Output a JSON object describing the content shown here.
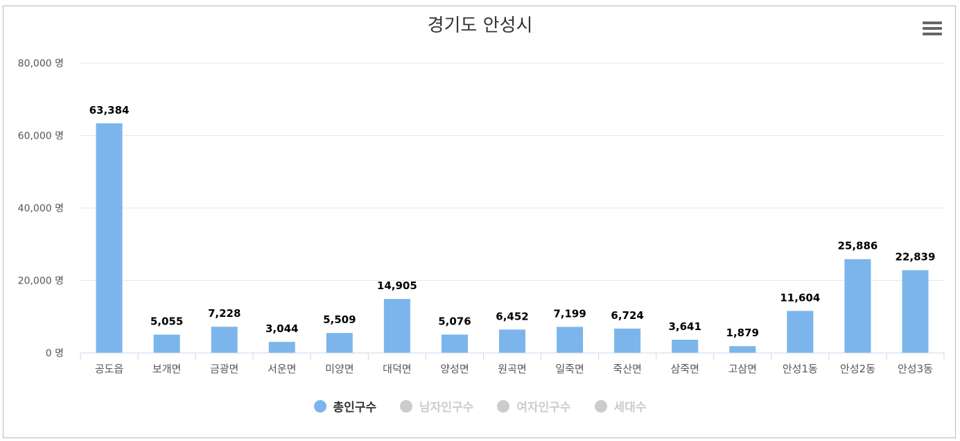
{
  "chart_data": {
    "type": "bar",
    "title": "경기도 안성시",
    "categories": [
      "공도읍",
      "보개면",
      "금광면",
      "서운면",
      "미양면",
      "대덕면",
      "양성면",
      "원곡면",
      "일죽면",
      "죽산면",
      "삼죽면",
      "고삼면",
      "안성1동",
      "안성2동",
      "안성3동"
    ],
    "series": [
      {
        "name": "총인구수",
        "values": [
          63384,
          5055,
          7228,
          3044,
          5509,
          14905,
          5076,
          6452,
          7199,
          6724,
          3641,
          1879,
          11604,
          25886,
          22839
        ]
      }
    ],
    "data_labels": [
      "63,384",
      "5,055",
      "7,228",
      "3,044",
      "5,509",
      "14,905",
      "5,076",
      "6,452",
      "7,199",
      "6,724",
      "3,641",
      "1,879",
      "11,604",
      "25,886",
      "22,839"
    ],
    "y_ticks": [
      0,
      20000,
      40000,
      60000,
      80000
    ],
    "y_tick_labels": [
      "0 명",
      "20,000 명",
      "40,000 명",
      "60,000 명",
      "80,000 명"
    ],
    "ylim": [
      0,
      80000
    ],
    "grid": true,
    "legend_position": "bottom-center",
    "bar_color": "#7cb5ec"
  },
  "legend": [
    {
      "label": "총인구수",
      "active": true,
      "color": "#7cb5ec"
    },
    {
      "label": "남자인구수",
      "active": false,
      "color": "#cccccc"
    },
    {
      "label": "여자인구수",
      "active": false,
      "color": "#cccccc"
    },
    {
      "label": "세대수",
      "active": false,
      "color": "#cccccc"
    }
  ],
  "menu_icon": "hamburger-menu-icon"
}
